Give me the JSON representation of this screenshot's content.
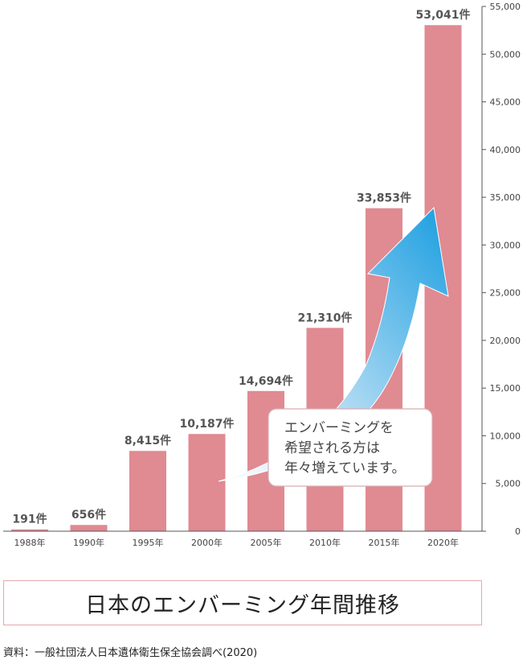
{
  "chart_data": {
    "type": "bar",
    "categories": [
      "1988年",
      "1990年",
      "1995年",
      "2000年",
      "2005年",
      "2010年",
      "2015年",
      "2020年"
    ],
    "values": [
      191,
      656,
      8415,
      10187,
      14694,
      21310,
      33853,
      53041
    ],
    "value_labels": [
      "191件",
      "656件",
      "8,415件",
      "10,187件",
      "14,694件",
      "21,310件",
      "33,853件",
      "53,041件"
    ],
    "y_ticks": [
      "0",
      "5,000",
      "10,000",
      "15,000",
      "20,000",
      "25,000",
      "30,000",
      "35,000",
      "40,000",
      "45,000",
      "50,000",
      "55,000"
    ],
    "ylim": [
      0,
      55000
    ],
    "y_axis_position": "right",
    "grid": false,
    "bar_color": "#e08a92",
    "arrow_colors": [
      "#ffffff",
      "#1a9ee0"
    ],
    "callout": [
      "エンバーミングを",
      "希望される方は",
      "年々増えています。"
    ]
  },
  "title": "日本のエンバーミング年間推移",
  "source": "資料：一般社団法人日本遺体衛生保全協会調べ(2020)"
}
